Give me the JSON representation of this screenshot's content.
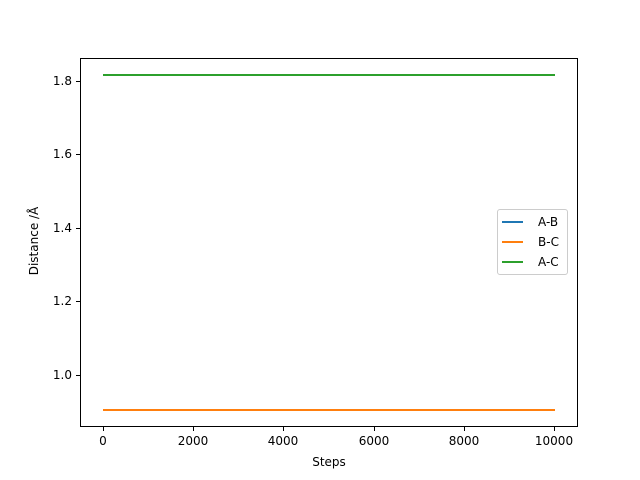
{
  "figure": {
    "background": "#ffffff",
    "axis_color": "#000000"
  },
  "chart_data": {
    "type": "line",
    "title": "",
    "xlabel": "Steps",
    "ylabel": "Distance /Å",
    "xlim": [
      -500,
      10500
    ],
    "ylim": [
      0.8614,
      1.8614
    ],
    "x_ticks": [
      0,
      2000,
      4000,
      6000,
      8000,
      10000
    ],
    "y_ticks": [
      1.0,
      1.2,
      1.4,
      1.6,
      1.8
    ],
    "y_tick_decimals": 1,
    "grid": false,
    "x": [
      0,
      10000
    ],
    "series": [
      {
        "name": "A-B",
        "color": "#1f77b4",
        "values": [
          0.905,
          0.905
        ]
      },
      {
        "name": "B-C",
        "color": "#ff7f0e",
        "values": [
          0.905,
          0.905
        ]
      },
      {
        "name": "A-C",
        "color": "#2ca02c",
        "values": [
          1.815,
          1.815
        ]
      }
    ],
    "legend": {
      "position": "center right",
      "entries": [
        "A-B",
        "B-C",
        "A-C"
      ],
      "border_color": "#cccccc"
    }
  }
}
